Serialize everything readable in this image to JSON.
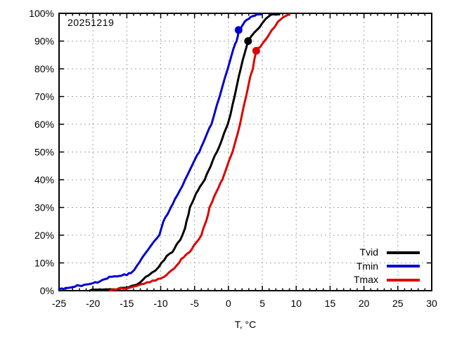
{
  "chart_data": {
    "type": "line",
    "subtype": "empirical-cdf",
    "annotation": "20251219",
    "title": "",
    "xlabel": "T, °C",
    "ylabel": "",
    "xlim": [
      -25,
      30
    ],
    "ylim": [
      0,
      100
    ],
    "x_tick_values": [
      -25,
      -20,
      -15,
      -10,
      -5,
      0,
      5,
      10,
      15,
      20,
      25,
      30
    ],
    "x_tick_labels": [
      "-25",
      "-20",
      "-15",
      "-10",
      "-5",
      "0",
      "5",
      "10",
      "15",
      "20",
      "25",
      "30"
    ],
    "x_minor_tick_step": 1,
    "y_tick_values": [
      0,
      10,
      20,
      30,
      40,
      50,
      60,
      70,
      80,
      90,
      100
    ],
    "y_tick_labels": [
      "0%",
      "10%",
      "20%",
      "30%",
      "40%",
      "50%",
      "60%",
      "70%",
      "80%",
      "90%",
      "100%"
    ],
    "grid": "dashed-major-both",
    "grid_color": "#a6a6a6",
    "axis_color": "#000000",
    "background_color": "#ffffff",
    "legend_position": "bottom-right",
    "series": [
      {
        "name": "Tvid",
        "color": "#000000",
        "marker_point": {
          "t": 2.9,
          "pct": 90
        },
        "points": [
          [
            -20.5,
            0
          ],
          [
            -19,
            0.3
          ],
          [
            -17.5,
            0.5
          ],
          [
            -16,
            1
          ],
          [
            -14.5,
            1.5
          ],
          [
            -13.5,
            2.2
          ],
          [
            -13,
            3
          ],
          [
            -12.6,
            4
          ],
          [
            -12.2,
            5
          ],
          [
            -11.8,
            5.5
          ],
          [
            -11.3,
            6.5
          ],
          [
            -10.8,
            7.2
          ],
          [
            -10.3,
            8.5
          ],
          [
            -9.9,
            10
          ],
          [
            -9.5,
            11
          ],
          [
            -9.1,
            12.5
          ],
          [
            -8.6,
            13.5
          ],
          [
            -8.0,
            15
          ],
          [
            -7.4,
            17.5
          ],
          [
            -6.8,
            20
          ],
          [
            -6.4,
            22.5
          ],
          [
            -6.2,
            25
          ],
          [
            -5.9,
            27.5
          ],
          [
            -5.7,
            30
          ],
          [
            -5.2,
            32.5
          ],
          [
            -4.8,
            35
          ],
          [
            -4.2,
            37.5
          ],
          [
            -3.5,
            40
          ],
          [
            -2.9,
            43.5
          ],
          [
            -2.3,
            47
          ],
          [
            -1.7,
            50
          ],
          [
            -1.1,
            53.5
          ],
          [
            -0.6,
            57
          ],
          [
            -0.1,
            60
          ],
          [
            0.3,
            63.5
          ],
          [
            0.6,
            67
          ],
          [
            0.9,
            70
          ],
          [
            1.2,
            73.5
          ],
          [
            1.5,
            77
          ],
          [
            1.8,
            80
          ],
          [
            2.1,
            83
          ],
          [
            2.5,
            86.5
          ],
          [
            2.9,
            90
          ],
          [
            3.3,
            91.5
          ],
          [
            3.8,
            93
          ],
          [
            4.2,
            94
          ],
          [
            4.6,
            95
          ],
          [
            5.0,
            96.5
          ],
          [
            5.5,
            98
          ],
          [
            6.0,
            99
          ],
          [
            6.4,
            100
          ],
          [
            7.5,
            100
          ]
        ]
      },
      {
        "name": "Tmin",
        "color": "#0000cd",
        "marker_point": {
          "t": 1.5,
          "pct": 94
        },
        "points": [
          [
            -25,
            0.5
          ],
          [
            -24,
            1
          ],
          [
            -23,
            1.3
          ],
          [
            -22,
            1.8
          ],
          [
            -21,
            2.2
          ],
          [
            -20,
            2.7
          ],
          [
            -19,
            3.3
          ],
          [
            -18.2,
            4.2
          ],
          [
            -17.6,
            5
          ],
          [
            -16.8,
            5.2
          ],
          [
            -15.8,
            5.4
          ],
          [
            -15,
            5.6
          ],
          [
            -14.4,
            6.3
          ],
          [
            -13.9,
            7.5
          ],
          [
            -13.5,
            9
          ],
          [
            -13.2,
            10
          ],
          [
            -12.7,
            12
          ],
          [
            -12.1,
            14
          ],
          [
            -11.5,
            16
          ],
          [
            -10.9,
            18
          ],
          [
            -10.2,
            20
          ],
          [
            -9.9,
            22.5
          ],
          [
            -9.6,
            25
          ],
          [
            -9.0,
            27.5
          ],
          [
            -8.5,
            30
          ],
          [
            -7.9,
            33
          ],
          [
            -7.2,
            36
          ],
          [
            -6.4,
            40
          ],
          [
            -5.7,
            43.5
          ],
          [
            -5.0,
            47
          ],
          [
            -4.3,
            50
          ],
          [
            -3.7,
            53.5
          ],
          [
            -3.1,
            57
          ],
          [
            -2.5,
            60
          ],
          [
            -2.1,
            63.5
          ],
          [
            -1.7,
            67
          ],
          [
            -1.3,
            70
          ],
          [
            -0.9,
            73.5
          ],
          [
            -0.5,
            77
          ],
          [
            -0.1,
            80
          ],
          [
            0.3,
            83.5
          ],
          [
            0.7,
            87
          ],
          [
            1.0,
            89
          ],
          [
            1.2,
            90
          ],
          [
            1.4,
            92
          ],
          [
            1.5,
            94
          ],
          [
            1.9,
            95
          ],
          [
            2.4,
            97
          ],
          [
            3.0,
            98
          ],
          [
            3.6,
            99
          ],
          [
            4.2,
            100
          ],
          [
            4.8,
            100
          ]
        ]
      },
      {
        "name": "Tmax",
        "color": "#dd0000",
        "marker_point": {
          "t": 4.1,
          "pct": 86.5
        },
        "points": [
          [
            -17.5,
            0
          ],
          [
            -16.5,
            0.3
          ],
          [
            -15.5,
            0.7
          ],
          [
            -14.7,
            1
          ],
          [
            -14,
            1.5
          ],
          [
            -13.2,
            2
          ],
          [
            -12.4,
            2.5
          ],
          [
            -11.6,
            3
          ],
          [
            -10.8,
            3.6
          ],
          [
            -10,
            4.4
          ],
          [
            -9.5,
            5
          ],
          [
            -8.8,
            6.5
          ],
          [
            -8.0,
            8
          ],
          [
            -7.3,
            10
          ],
          [
            -6.6,
            12
          ],
          [
            -6.0,
            13.5
          ],
          [
            -5.4,
            15
          ],
          [
            -4.7,
            17.5
          ],
          [
            -4.0,
            20
          ],
          [
            -3.7,
            22.5
          ],
          [
            -3.3,
            25
          ],
          [
            -3.0,
            27.5
          ],
          [
            -2.8,
            30
          ],
          [
            -2.4,
            32
          ],
          [
            -2.1,
            34
          ],
          [
            -1.5,
            37
          ],
          [
            -0.9,
            40
          ],
          [
            -0.4,
            43.5
          ],
          [
            0.1,
            47
          ],
          [
            0.6,
            50
          ],
          [
            1.0,
            53.5
          ],
          [
            1.4,
            57
          ],
          [
            1.7,
            60
          ],
          [
            2.0,
            63.5
          ],
          [
            2.3,
            67
          ],
          [
            2.6,
            70
          ],
          [
            2.9,
            73.5
          ],
          [
            3.2,
            77
          ],
          [
            3.6,
            80
          ],
          [
            3.8,
            83
          ],
          [
            4.1,
            86.5
          ],
          [
            4.4,
            87.5
          ],
          [
            5.0,
            89
          ],
          [
            5.3,
            90
          ],
          [
            5.9,
            92
          ],
          [
            6.4,
            94
          ],
          [
            6.8,
            95
          ],
          [
            7.3,
            97
          ],
          [
            7.8,
            98
          ],
          [
            8.4,
            99
          ],
          [
            9.0,
            100
          ]
        ]
      }
    ]
  }
}
